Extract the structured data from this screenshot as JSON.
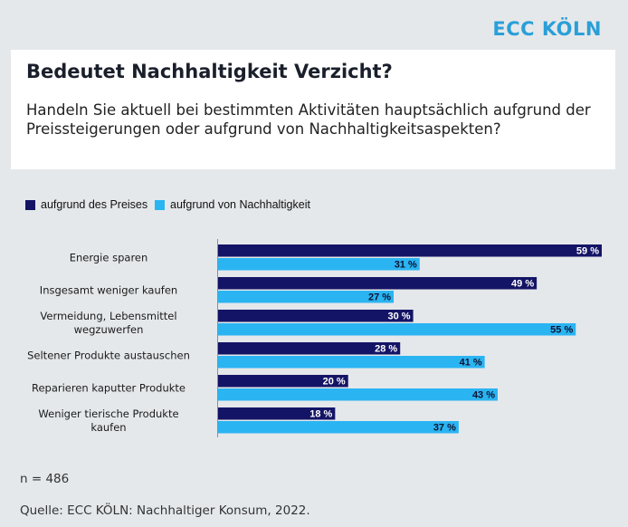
{
  "brand": "ECC KÖLN",
  "title": "Bedeutet Nachhaltigkeit Verzicht?",
  "subtitle": "Handeln Sie aktuell bei bestimmten Aktivitäten hauptsächlich aufgrund der Preissteigerungen oder aufgrund von Nachhaltigkeitsaspekten?",
  "legend": [
    {
      "label": "aufgrund des Preises",
      "color": "#141466"
    },
    {
      "label": "aufgrund von Nachhaltigkeit",
      "color": "#2ab4f2"
    }
  ],
  "chart_data": {
    "type": "bar",
    "orientation": "horizontal",
    "categories": [
      [
        "Energie sparen"
      ],
      [
        "Insgesamt weniger kaufen"
      ],
      [
        "Vermeidung, Lebensmittel",
        "wegzuwerfen"
      ],
      [
        "Seltener Produkte austauschen"
      ],
      [
        "Reparieren kaputter Produkte"
      ],
      [
        "Weniger tierische Produkte",
        "kaufen"
      ]
    ],
    "series": [
      {
        "name": "aufgrund des Preises",
        "values": [
          59,
          49,
          30,
          28,
          20,
          18
        ],
        "labels": [
          "59 %",
          "49 %",
          "30 %",
          "28 %",
          "20 %",
          "18 %"
        ],
        "color": "#141466",
        "label_color": "#ffffff"
      },
      {
        "name": "aufgrund von Nachhaltigkeit",
        "values": [
          31,
          27,
          55,
          41,
          43,
          37
        ],
        "labels": [
          "31 %",
          "27 %",
          "55 %",
          "41 %",
          "43 %",
          "37 %"
        ],
        "color": "#2ab4f2",
        "label_color": "#0e1330"
      }
    ],
    "unit": "%",
    "xlim": [
      0,
      59
    ],
    "grid": false
  },
  "footer": {
    "n": "n = 486",
    "source": "Quelle: ECC KÖLN: Nachhaltiger Konsum, 2022."
  }
}
